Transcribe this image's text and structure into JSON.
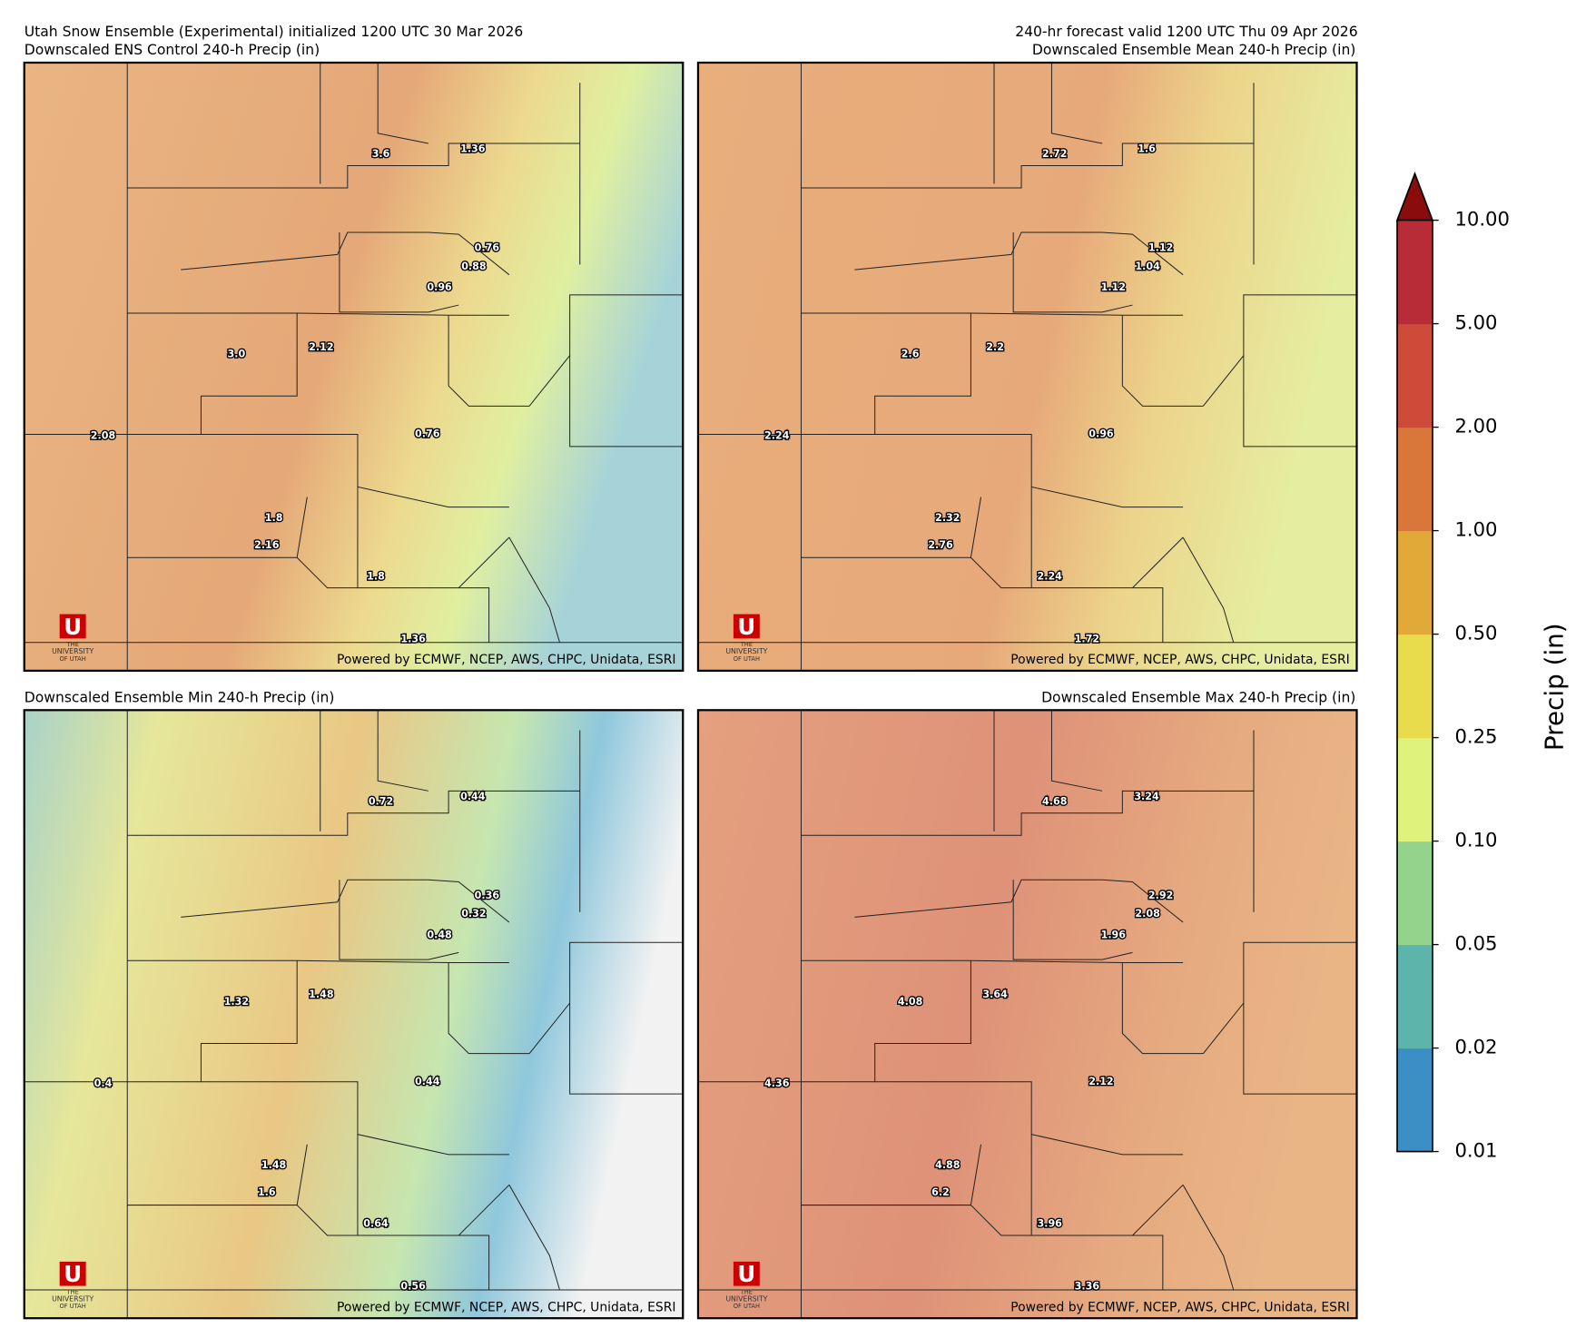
{
  "header": {
    "left": "Utah Snow Ensemble (Experimental) initialized 1200 UTC 30 Mar 2026",
    "right": "240-hr forecast valid 1200 UTC Thu 09 Apr 2026"
  },
  "credit": "Powered by ECMWF, NCEP, AWS, CHPC, Unidata, ESRI",
  "logo": {
    "mark": "U",
    "line1": "THE",
    "line2": "UNIVERSITY",
    "line3": "OF UTAH"
  },
  "panels": [
    {
      "title": "Downscaled ENS Control 240-h Precip (in)",
      "points": [
        "3.6",
        "1.36",
        "0.76",
        "0.88",
        "0.96",
        "3.0",
        "2.12",
        "2.08",
        "0.76",
        "1.8",
        "2.16",
        "1.8",
        "1.36"
      ]
    },
    {
      "title": "Downscaled Ensemble Mean 240-h Precip (in)",
      "points": [
        "2.72",
        "1.6",
        "1.12",
        "1.04",
        "1.12",
        "2.6",
        "2.2",
        "2.24",
        "0.96",
        "2.32",
        "2.76",
        "2.24",
        "1.72"
      ]
    },
    {
      "title": "Downscaled Ensemble Min 240-h Precip (in)",
      "points": [
        "0.72",
        "0.44",
        "0.36",
        "0.32",
        "0.48",
        "1.32",
        "1.48",
        "0.4",
        "0.44",
        "1.48",
        "1.6",
        "0.64",
        "0.56"
      ]
    },
    {
      "title": "Downscaled Ensemble Max 240-h Precip (in)",
      "points": [
        "4.68",
        "3.24",
        "2.92",
        "2.08",
        "1.96",
        "4.08",
        "3.64",
        "4.36",
        "2.12",
        "4.88",
        "6.2",
        "3.96",
        "3.36"
      ]
    }
  ],
  "colorbar": {
    "label": "Precip (in)",
    "ticks": [
      "0.01",
      "0.02",
      "0.05",
      "0.10",
      "0.25",
      "0.50",
      "1.00",
      "2.00",
      "5.00",
      "10.00"
    ],
    "colors": [
      "#3b8fc5",
      "#5db4aa",
      "#93d38b",
      "#def27c",
      "#e8dc4c",
      "#e0a938",
      "#d9763a",
      "#cd4b38",
      "#b72c36"
    ],
    "extend_color": "#8a0c0c"
  }
}
